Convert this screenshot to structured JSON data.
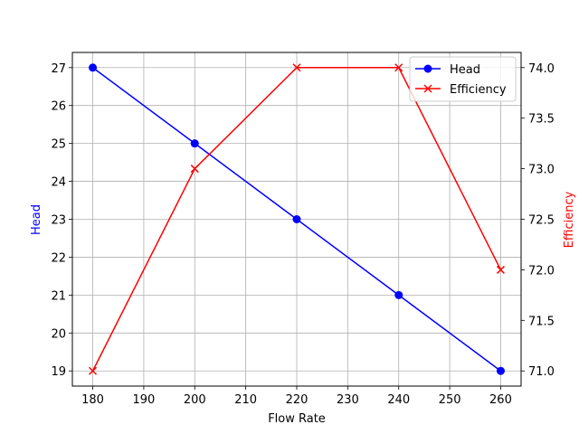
{
  "chart_data": {
    "type": "line",
    "title": "",
    "xlabel": "Flow Rate",
    "ylabel": "Head",
    "ylabel_right": "Efficiency",
    "x": [
      180,
      200,
      220,
      240,
      260
    ],
    "series": [
      {
        "name": "Head",
        "axis": "left",
        "color": "#0000ff",
        "marker": "circle",
        "values": [
          27,
          25,
          23,
          21,
          19
        ]
      },
      {
        "name": "Efficiency",
        "axis": "right",
        "color": "#ff0000",
        "marker": "x",
        "values": [
          71,
          73,
          74,
          74,
          72
        ]
      }
    ],
    "xticks": [
      180,
      190,
      200,
      210,
      220,
      230,
      240,
      250,
      260
    ],
    "yticks_left": [
      19,
      20,
      21,
      22,
      23,
      24,
      25,
      26,
      27
    ],
    "yticks_right": [
      "71.0",
      "71.5",
      "72.0",
      "72.5",
      "73.0",
      "73.5",
      "74.0"
    ],
    "xlim": [
      176,
      264
    ],
    "ylim_left": [
      18.6,
      27.4
    ],
    "ylim_right": [
      70.85,
      74.15
    ],
    "grid": true,
    "legend_position": "upper right"
  }
}
